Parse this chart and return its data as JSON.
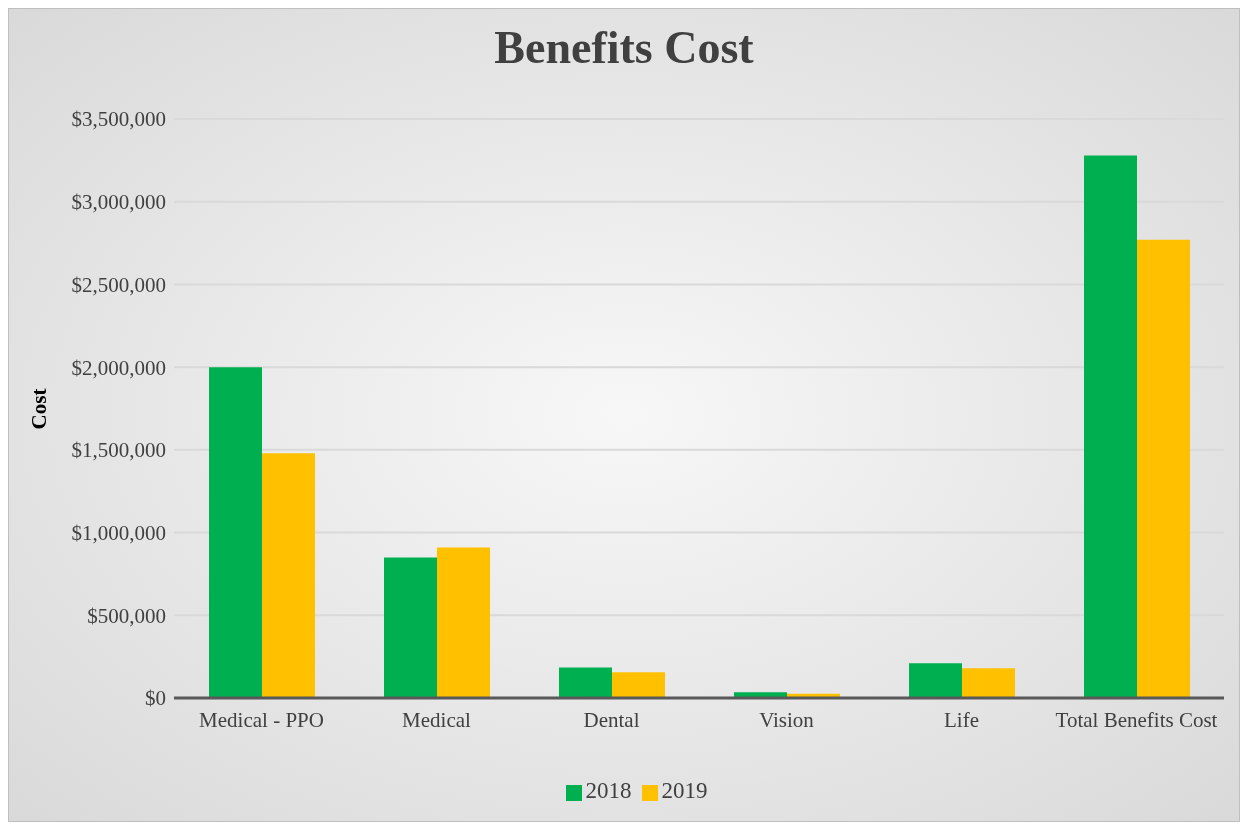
{
  "chart_data": {
    "type": "bar",
    "title": "Benefits Cost",
    "ylabel": "Cost",
    "categories": [
      "Medical - PPO",
      "Medical",
      "Dental",
      "Vision",
      "Life",
      "Total Benefits Cost"
    ],
    "series": [
      {
        "name": "2018",
        "color": "#00b050",
        "values": [
          2000000,
          850000,
          185000,
          35000,
          210000,
          3280000
        ]
      },
      {
        "name": "2019",
        "color": "#ffc000",
        "values": [
          1480000,
          910000,
          155000,
          25000,
          180000,
          2770000
        ]
      }
    ],
    "ylim": [
      0,
      3500000
    ],
    "yticks": [
      {
        "value": 0,
        "label": "$0"
      },
      {
        "value": 500000,
        "label": "$500,000"
      },
      {
        "value": 1000000,
        "label": "$1,000,000"
      },
      {
        "value": 1500000,
        "label": "$1,500,000"
      },
      {
        "value": 2000000,
        "label": "$2,000,000"
      },
      {
        "value": 2500000,
        "label": "$2,500,000"
      },
      {
        "value": 3000000,
        "label": "$3,000,000"
      },
      {
        "value": 3500000,
        "label": "$3,500,000"
      }
    ],
    "grid": "y",
    "legend": "bottom"
  }
}
